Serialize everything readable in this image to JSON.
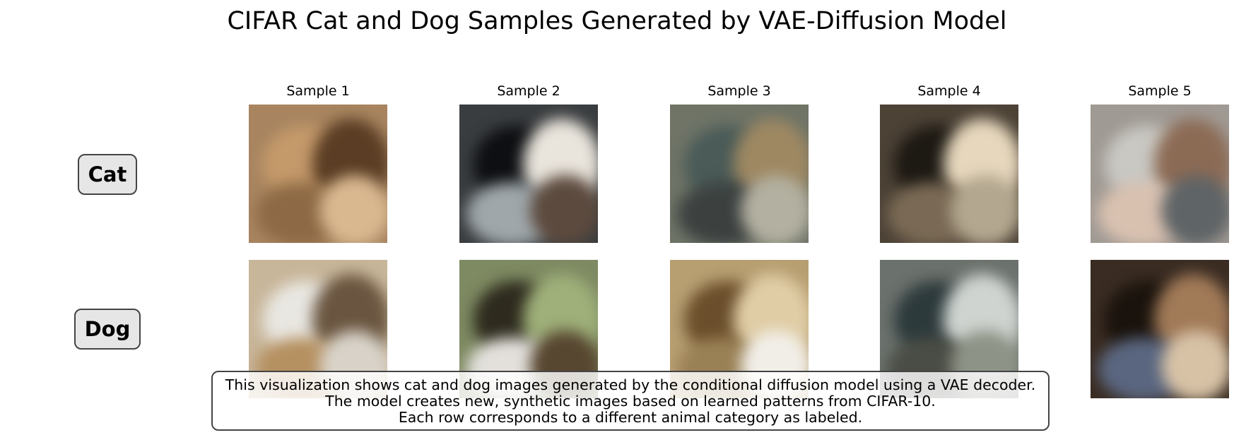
{
  "title": "CIFAR Cat and Dog Samples Generated by VAE-Diffusion Model",
  "columns": [
    "Sample 1",
    "Sample 2",
    "Sample 3",
    "Sample 4",
    "Sample 5"
  ],
  "rows": [
    {
      "label": "Cat"
    },
    {
      "label": "Dog"
    }
  ],
  "samples": [
    [
      {
        "bg": "#a88560",
        "colors": [
          "#c59a6b",
          "#5a3d24",
          "#8d6a45",
          "#d9b890"
        ]
      },
      {
        "bg": "#3a3d3f",
        "colors": [
          "#0d0f12",
          "#e9e4dc",
          "#9fa7ab",
          "#5c4a3e"
        ]
      },
      {
        "bg": "#6f7467",
        "colors": [
          "#4a5b58",
          "#9e8862",
          "#3c4140",
          "#b3b0a1"
        ]
      },
      {
        "bg": "#4c4236",
        "colors": [
          "#1d1913",
          "#e6d7bd",
          "#7a6a55",
          "#b3a78f"
        ]
      },
      {
        "bg": "#a09a94",
        "colors": [
          "#c9c8c3",
          "#8c6b55",
          "#d9c1b0",
          "#5f6466"
        ]
      }
    ],
    [
      {
        "bg": "#c8b69a",
        "colors": [
          "#e9e7e2",
          "#6a5640",
          "#b59060",
          "#d8d2c8"
        ]
      },
      {
        "bg": "#7e8a62",
        "colors": [
          "#2e2b1e",
          "#9fb07a",
          "#e3e0dc",
          "#574630"
        ]
      },
      {
        "bg": "#b89f72",
        "colors": [
          "#6b4f2c",
          "#e0cda6",
          "#9a8055",
          "#f1eee8"
        ]
      },
      {
        "bg": "#6b716c",
        "colors": [
          "#2d3a3c",
          "#cfd4d0",
          "#4a4d45",
          "#8e9387"
        ]
      },
      {
        "bg": "#3a2c22",
        "colors": [
          "#1a130d",
          "#a17a58",
          "#5a6680",
          "#d7c2a6"
        ]
      }
    ]
  ],
  "caption": [
    "This visualization shows cat and dog images generated by the conditional diffusion model using a VAE decoder.",
    "The model creates new, synthetic images based on learned patterns from CIFAR-10.",
    "Each row corresponds to a different animal category as labeled."
  ]
}
